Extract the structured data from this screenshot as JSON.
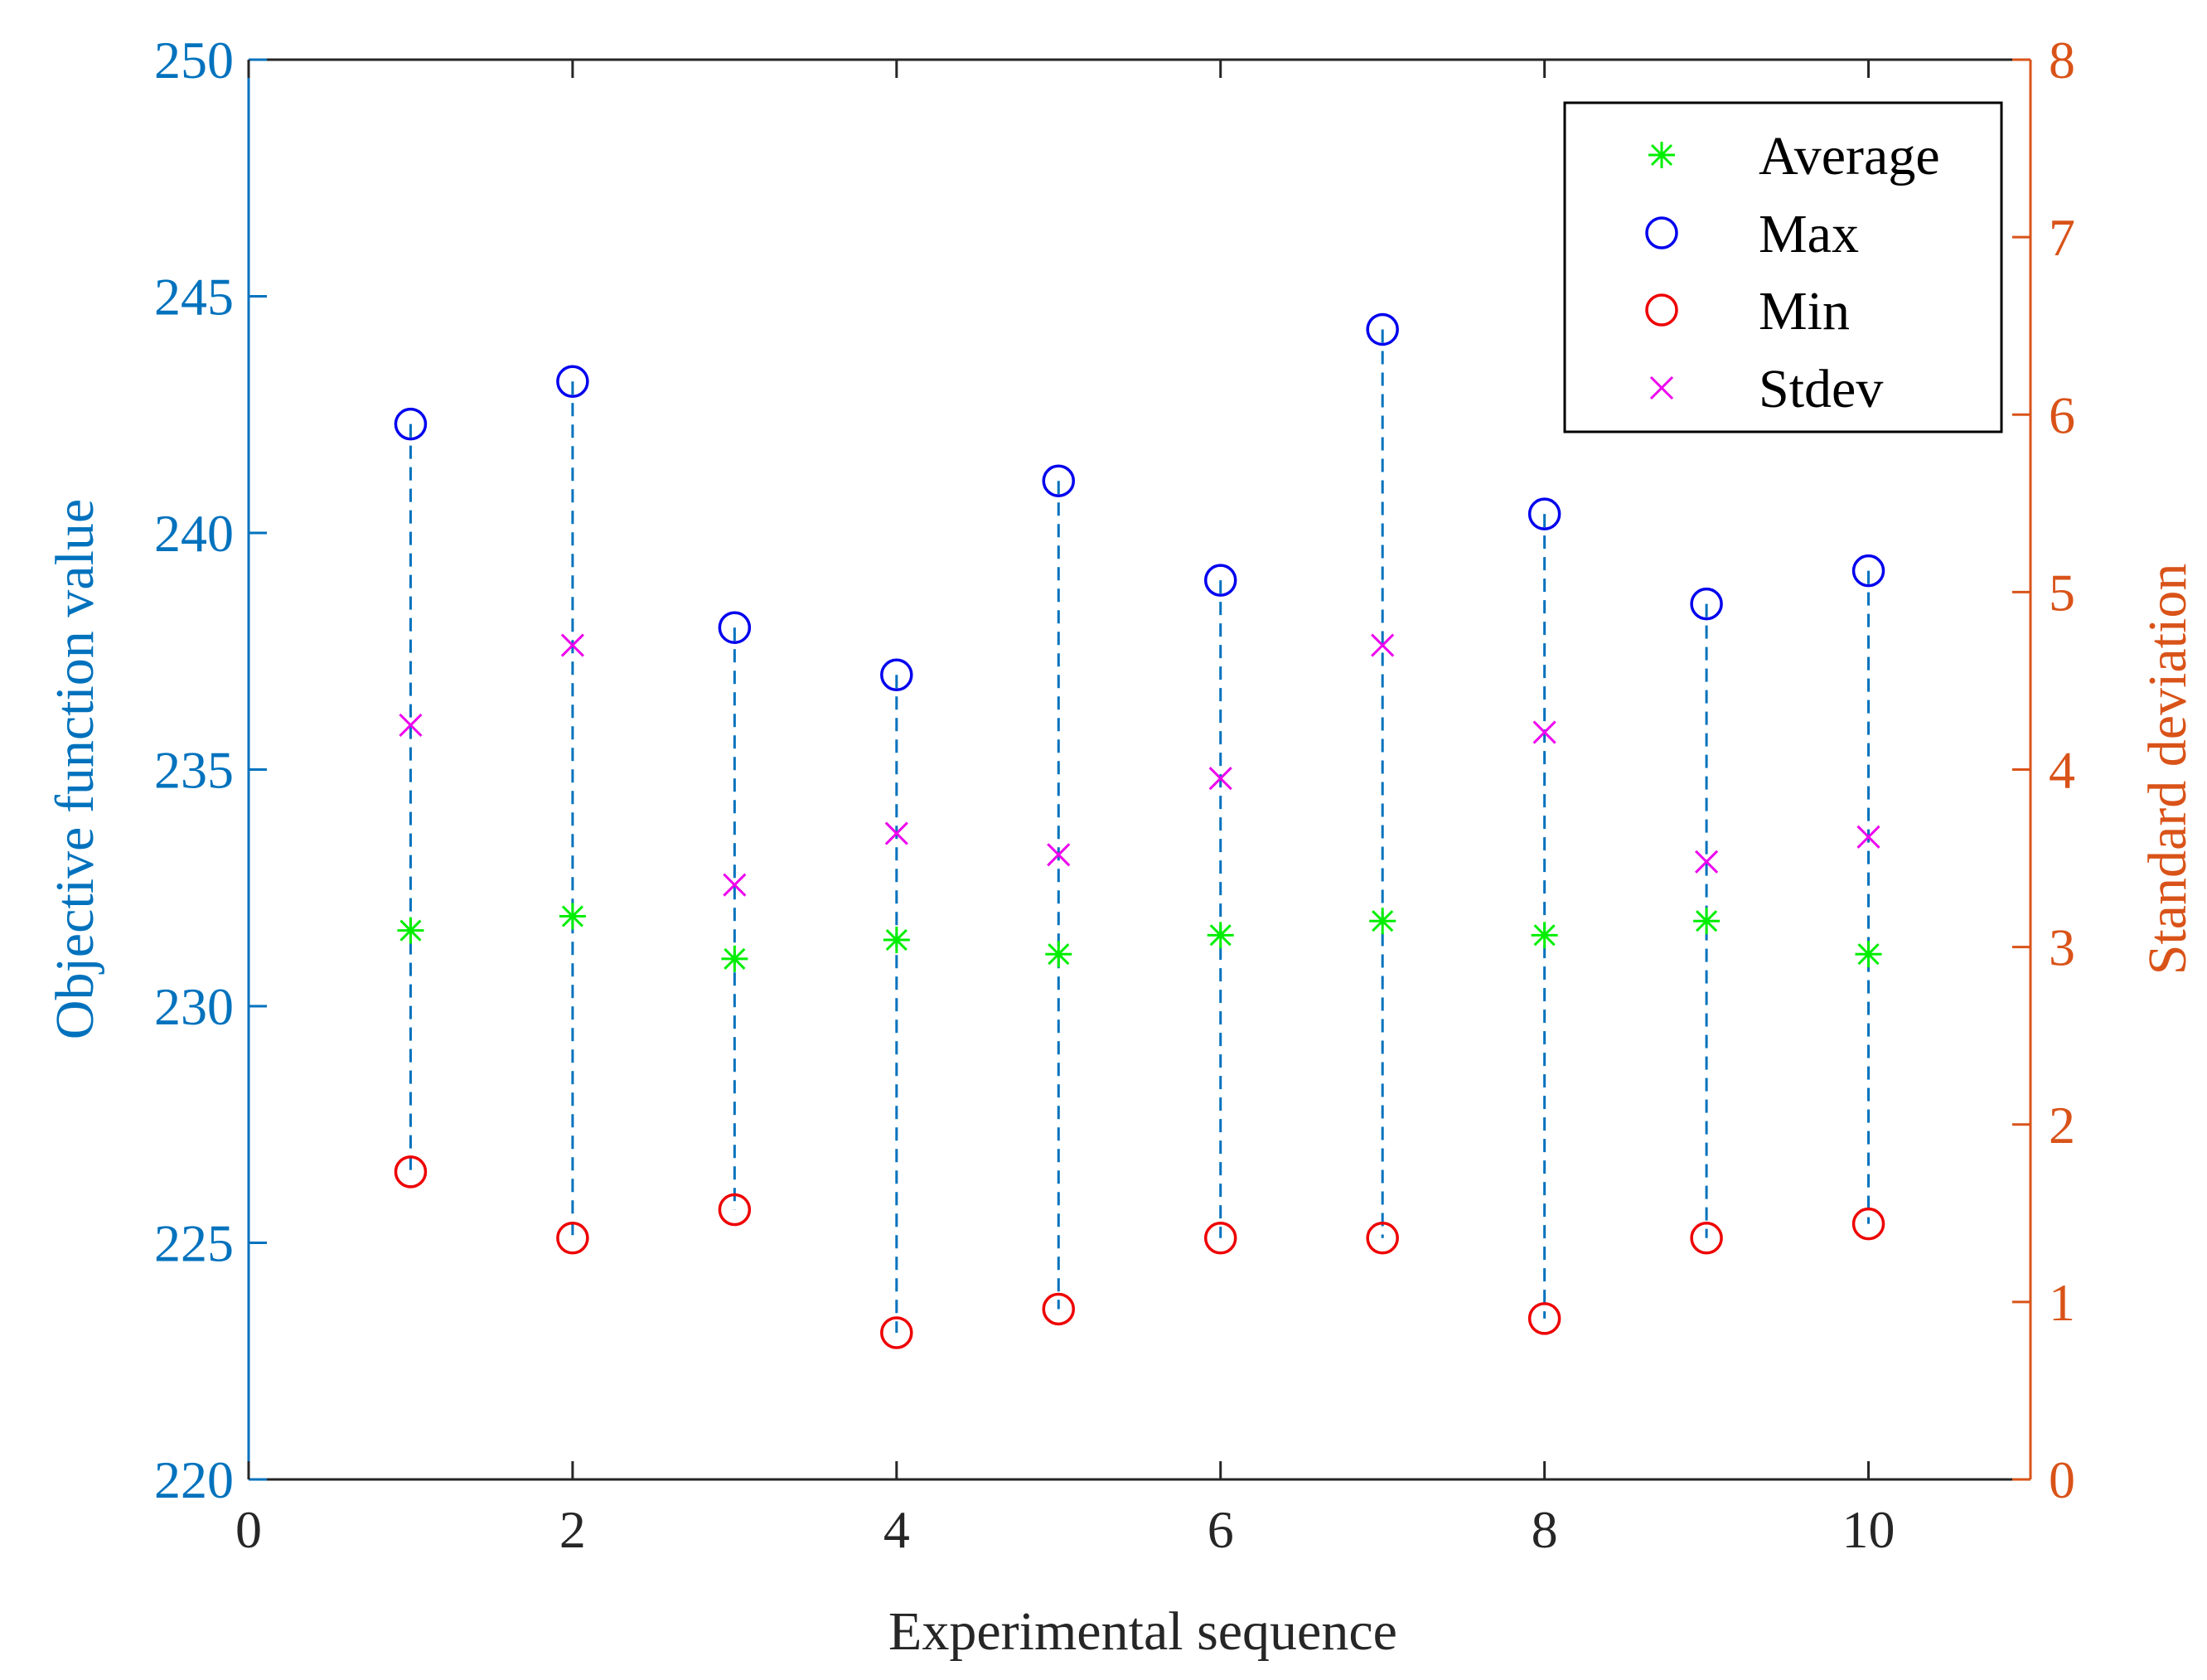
{
  "chart_data": {
    "type": "scatter",
    "xlabel": "Experimental sequence",
    "ylabel_left": "Objective function value",
    "ylabel_right": "Standard deviation",
    "xlim": [
      0,
      11
    ],
    "ylim_left": [
      220,
      250
    ],
    "ylim_right": [
      0,
      8
    ],
    "xticks": [
      0,
      2,
      4,
      6,
      8,
      10
    ],
    "yticks_left": [
      220,
      225,
      230,
      235,
      240,
      245,
      250
    ],
    "yticks_right": [
      0,
      1,
      2,
      3,
      4,
      5,
      6,
      7,
      8
    ],
    "x": [
      1,
      2,
      3,
      4,
      5,
      6,
      7,
      8,
      9,
      10
    ],
    "series": [
      {
        "name": "Average",
        "axis": "left",
        "marker": "asterisk",
        "color": "#00ee00",
        "values": [
          231.6,
          231.9,
          231.0,
          231.4,
          231.1,
          231.5,
          231.8,
          231.5,
          231.8,
          231.1
        ]
      },
      {
        "name": "Max",
        "axis": "left",
        "marker": "circle",
        "color": "#0000ee",
        "values": [
          242.3,
          243.2,
          238.0,
          237.0,
          241.1,
          239.0,
          244.3,
          240.4,
          238.5,
          239.2
        ]
      },
      {
        "name": "Min",
        "axis": "left",
        "marker": "circle",
        "color": "#ee0000",
        "values": [
          226.5,
          225.1,
          225.7,
          223.1,
          223.6,
          225.1,
          225.1,
          223.4,
          225.1,
          225.4
        ]
      },
      {
        "name": "Stdev",
        "axis": "right",
        "marker": "x",
        "color": "#ee00ee",
        "values": [
          4.25,
          4.7,
          3.35,
          3.64,
          3.52,
          3.95,
          4.7,
          4.21,
          3.48,
          3.62
        ]
      }
    ],
    "range_line": {
      "style": "dashed",
      "color": "#0072bd",
      "from": "Min",
      "to": "Max"
    },
    "legend": {
      "position": "top-right",
      "entries": [
        "Average",
        "Max",
        "Min",
        "Stdev"
      ]
    },
    "colors": {
      "left_axis": "#0072bd",
      "right_axis": "#d95319",
      "frame": "#262626"
    }
  }
}
